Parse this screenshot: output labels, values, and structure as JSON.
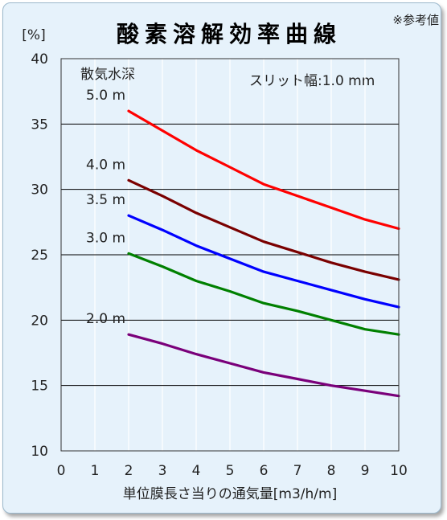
{
  "title": "酸素溶解効率曲線",
  "note": "※参考値",
  "chart_data": {
    "type": "line",
    "title": "酸素溶解効率曲線",
    "xlabel": "単位膜長さ当りの通気量[m3/h/m]",
    "ylabel": "[%]",
    "xlim": [
      0,
      10
    ],
    "ylim": [
      10,
      40
    ],
    "x_ticks": [
      "0",
      "1",
      "2",
      "3",
      "4",
      "5",
      "6",
      "7",
      "8",
      "9",
      "10"
    ],
    "y_ticks": [
      "10",
      "15",
      "20",
      "25",
      "30",
      "35",
      "40"
    ],
    "grid": "vertical and horizontal",
    "legend_title": "散気水深",
    "annotation": "スリット幅:1.0 mm",
    "series": [
      {
        "name": "5.0 m",
        "color": "#ff0000",
        "x": [
          2,
          3,
          4,
          5,
          6,
          7,
          8,
          9,
          10
        ],
        "y": [
          36.0,
          34.5,
          33.0,
          31.7,
          30.4,
          29.5,
          28.6,
          27.7,
          27.0
        ]
      },
      {
        "name": "4.0 m",
        "color": "#7a0000",
        "x": [
          2,
          3,
          4,
          5,
          6,
          7,
          8,
          9,
          10
        ],
        "y": [
          30.7,
          29.5,
          28.2,
          27.1,
          26.0,
          25.2,
          24.4,
          23.7,
          23.1
        ]
      },
      {
        "name": "3.5 m",
        "color": "#0000ff",
        "x": [
          2,
          3,
          4,
          5,
          6,
          7,
          8,
          9,
          10
        ],
        "y": [
          28.0,
          26.9,
          25.7,
          24.7,
          23.7,
          23.0,
          22.3,
          21.6,
          21.0
        ]
      },
      {
        "name": "3.0 m",
        "color": "#008000",
        "x": [
          2,
          3,
          4,
          5,
          6,
          7,
          8,
          9,
          10
        ],
        "y": [
          25.1,
          24.1,
          23.0,
          22.2,
          21.3,
          20.7,
          20.0,
          19.3,
          18.9
        ]
      },
      {
        "name": "2.0 m",
        "color": "#7a007a",
        "x": [
          2,
          3,
          4,
          5,
          6,
          7,
          8,
          9,
          10
        ],
        "y": [
          18.9,
          18.2,
          17.4,
          16.7,
          16.0,
          15.5,
          15.0,
          14.6,
          14.2
        ]
      }
    ]
  }
}
